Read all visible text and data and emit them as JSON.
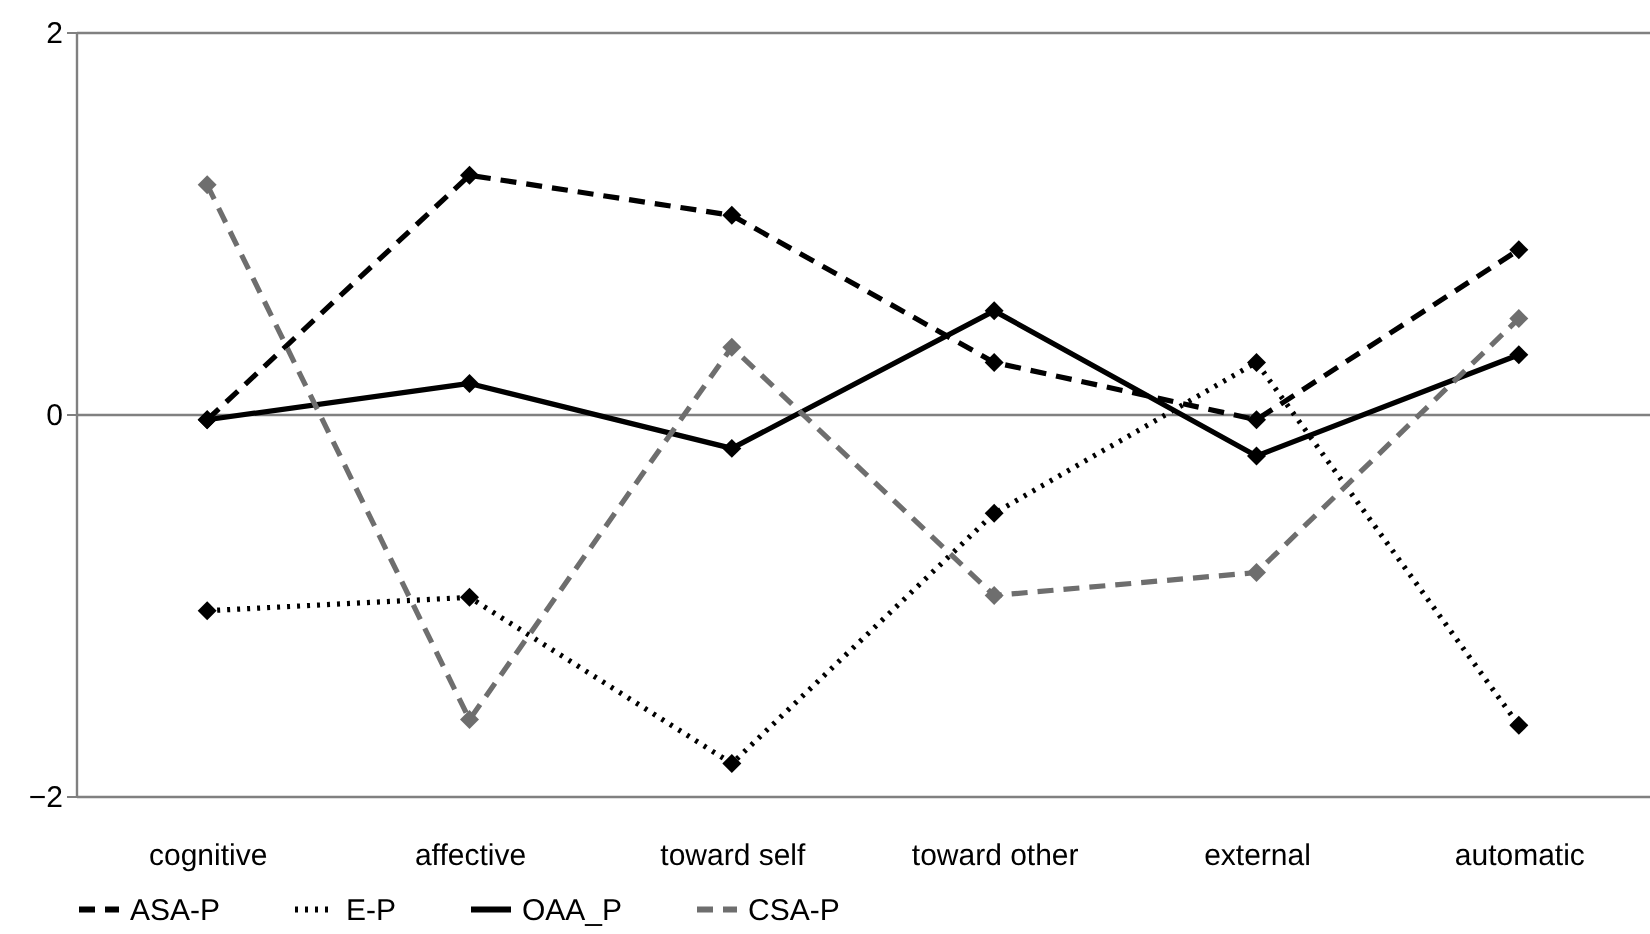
{
  "chart_data": {
    "type": "line",
    "categories": [
      "cognitive",
      "affective",
      "toward self",
      "toward other",
      "external",
      "automatic"
    ],
    "series": [
      {
        "name": "ASA-P",
        "color": "#000000",
        "line_style": "dashed",
        "values": [
          -0.03,
          1.25,
          1.04,
          0.27,
          -0.03,
          0.86
        ]
      },
      {
        "name": "E-P",
        "color": "#000000",
        "line_style": "dotted",
        "values": [
          -1.03,
          -0.96,
          -1.83,
          -0.52,
          0.27,
          -1.63
        ]
      },
      {
        "name": "OAA_P",
        "color": "#000000",
        "line_style": "solid",
        "values": [
          -0.03,
          0.16,
          -0.18,
          0.54,
          -0.22,
          0.31
        ]
      },
      {
        "name": "CSA-P",
        "color": "#6e6e6e",
        "line_style": "dashed",
        "values": [
          1.2,
          -1.6,
          0.35,
          -0.95,
          -0.83,
          0.5
        ]
      }
    ],
    "ylim": [
      -2,
      2
    ],
    "yticks": [
      -2,
      0,
      2
    ],
    "grid": "y",
    "legend": "bottom",
    "marker": "diamond"
  }
}
